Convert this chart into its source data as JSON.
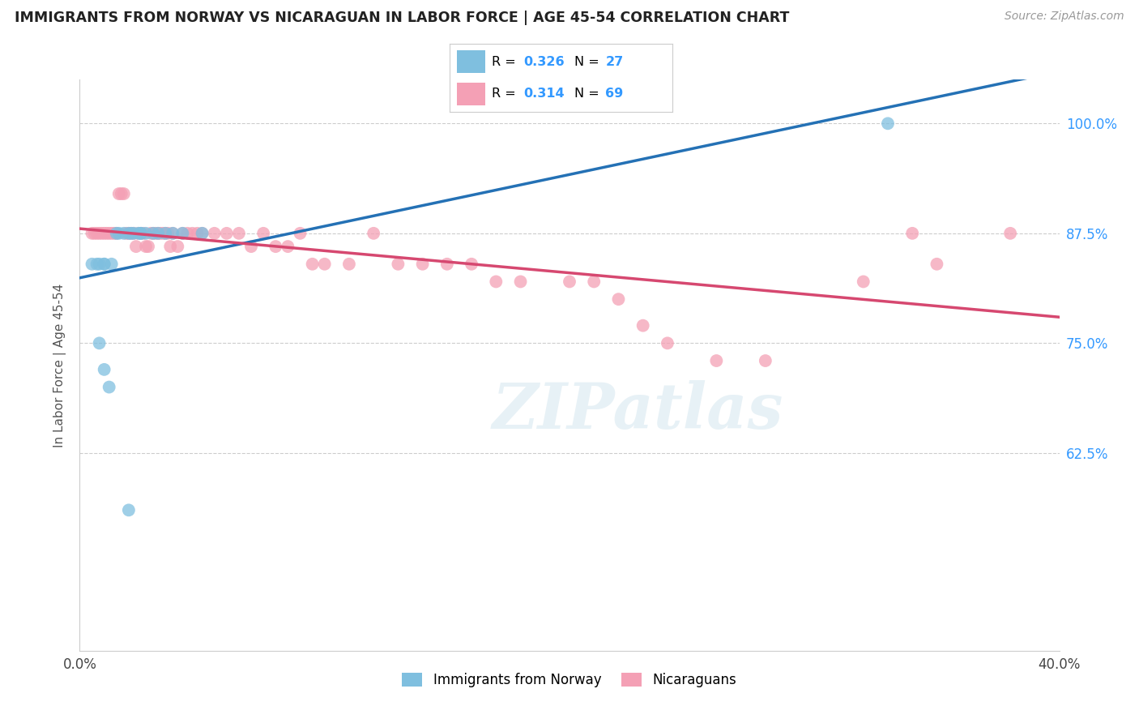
{
  "title": "IMMIGRANTS FROM NORWAY VS NICARAGUAN IN LABOR FORCE | AGE 45-54 CORRELATION CHART",
  "source": "Source: ZipAtlas.com",
  "ylabel": "In Labor Force | Age 45-54",
  "xlim": [
    0.0,
    0.4
  ],
  "ylim": [
    0.4,
    1.05
  ],
  "xticks": [
    0.0,
    0.05,
    0.1,
    0.15,
    0.2,
    0.25,
    0.3,
    0.35,
    0.4
  ],
  "yticks": [
    0.625,
    0.75,
    0.875,
    1.0
  ],
  "yticklabels": [
    "62.5%",
    "75.0%",
    "87.5%",
    "100.0%"
  ],
  "norway_R": 0.326,
  "norway_N": 27,
  "nicaragua_R": 0.314,
  "nicaragua_N": 69,
  "norway_color": "#7fbfdf",
  "nicaragua_color": "#f4a0b5",
  "norway_line_color": "#2471b5",
  "nicaragua_line_color": "#d64870",
  "legend_label_norway": "Immigrants from Norway",
  "legend_label_nicaragua": "Nicaraguans",
  "norway_x": [
    0.005,
    0.007,
    0.008,
    0.01,
    0.01,
    0.013,
    0.015,
    0.016,
    0.018,
    0.02,
    0.021,
    0.022,
    0.024,
    0.025,
    0.025,
    0.027,
    0.03,
    0.032,
    0.035,
    0.038,
    0.042,
    0.05,
    0.008,
    0.01,
    0.012,
    0.02,
    0.33
  ],
  "norway_y": [
    0.84,
    0.84,
    0.84,
    0.84,
    0.84,
    0.84,
    0.875,
    0.875,
    0.875,
    0.875,
    0.875,
    0.875,
    0.875,
    0.875,
    0.875,
    0.875,
    0.875,
    0.875,
    0.875,
    0.875,
    0.875,
    0.875,
    0.75,
    0.72,
    0.7,
    0.56,
    1.0
  ],
  "nicaragua_x": [
    0.005,
    0.006,
    0.007,
    0.008,
    0.009,
    0.01,
    0.011,
    0.012,
    0.013,
    0.014,
    0.015,
    0.016,
    0.017,
    0.018,
    0.019,
    0.02,
    0.021,
    0.022,
    0.023,
    0.024,
    0.025,
    0.026,
    0.027,
    0.028,
    0.029,
    0.03,
    0.031,
    0.032,
    0.033,
    0.034,
    0.035,
    0.036,
    0.037,
    0.038,
    0.04,
    0.042,
    0.044,
    0.046,
    0.048,
    0.05,
    0.055,
    0.06,
    0.065,
    0.07,
    0.075,
    0.08,
    0.085,
    0.09,
    0.095,
    0.1,
    0.11,
    0.12,
    0.13,
    0.14,
    0.15,
    0.16,
    0.17,
    0.18,
    0.2,
    0.21,
    0.22,
    0.23,
    0.24,
    0.26,
    0.28,
    0.32,
    0.34,
    0.35,
    0.38
  ],
  "nicaragua_y": [
    0.875,
    0.875,
    0.875,
    0.875,
    0.875,
    0.875,
    0.875,
    0.875,
    0.875,
    0.875,
    0.875,
    0.92,
    0.92,
    0.92,
    0.875,
    0.875,
    0.875,
    0.875,
    0.86,
    0.875,
    0.875,
    0.875,
    0.86,
    0.86,
    0.875,
    0.875,
    0.875,
    0.875,
    0.875,
    0.875,
    0.875,
    0.875,
    0.86,
    0.875,
    0.86,
    0.875,
    0.875,
    0.875,
    0.875,
    0.875,
    0.875,
    0.875,
    0.875,
    0.86,
    0.875,
    0.86,
    0.86,
    0.875,
    0.84,
    0.84,
    0.84,
    0.875,
    0.84,
    0.84,
    0.84,
    0.84,
    0.82,
    0.82,
    0.82,
    0.82,
    0.8,
    0.77,
    0.75,
    0.73,
    0.73,
    0.82,
    0.875,
    0.84,
    0.875
  ]
}
